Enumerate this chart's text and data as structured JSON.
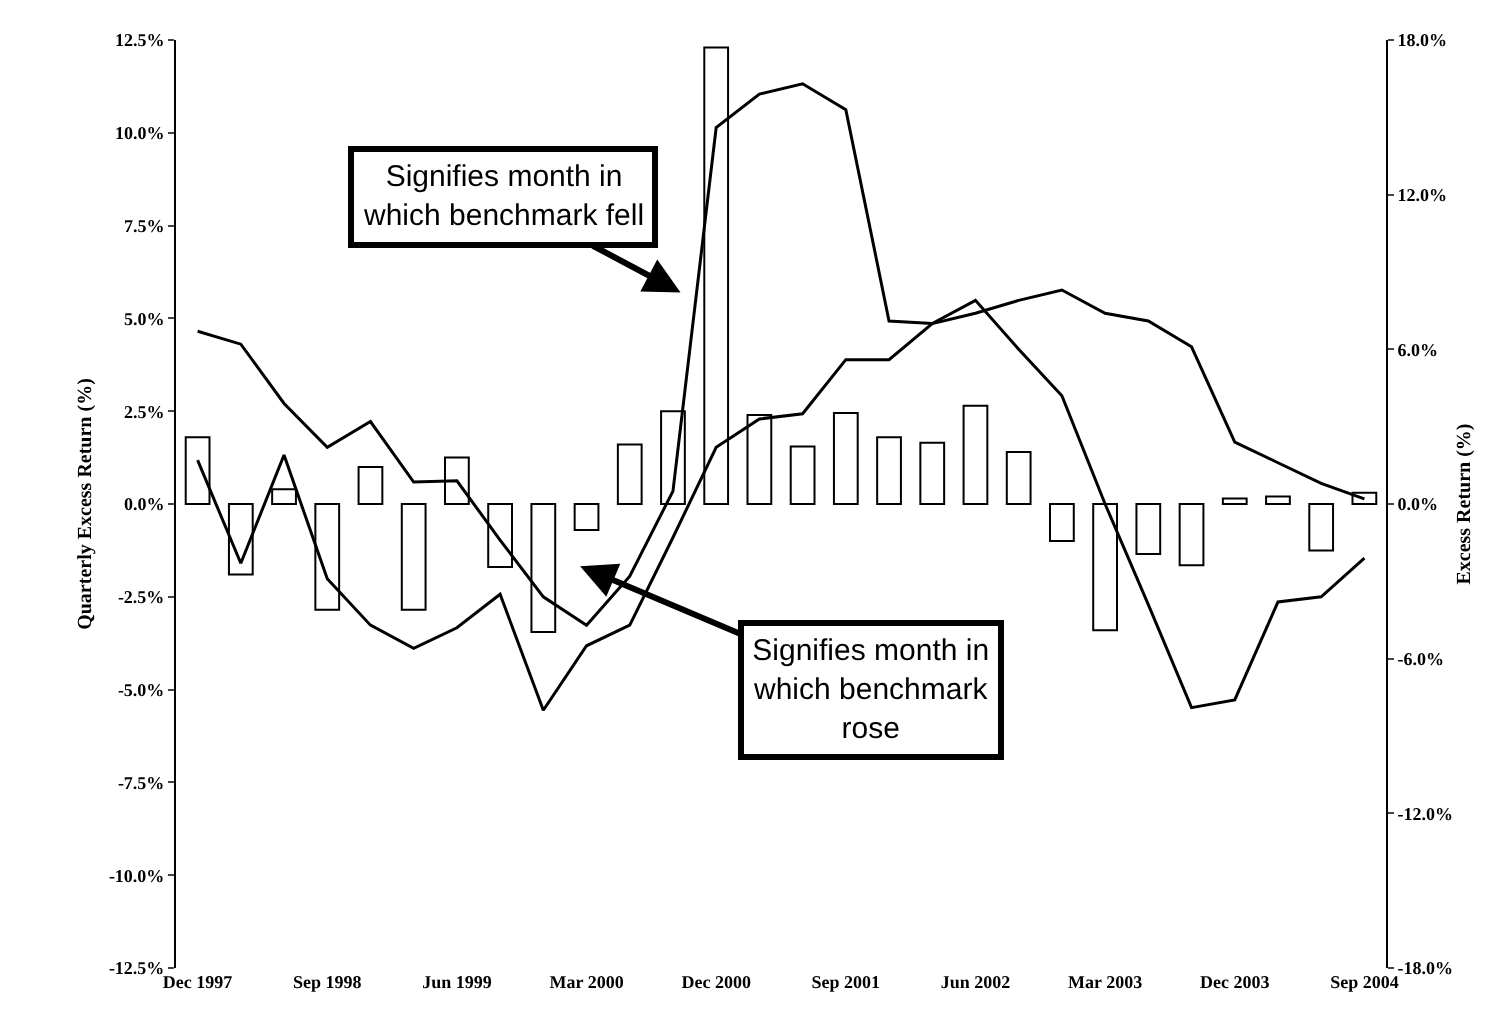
{
  "chart_data": {
    "type": "bar",
    "ylabel": "Quarterly Excess Return (%)",
    "y2label": "Excess Return (%)",
    "categories": [
      "Dec 1997",
      null,
      null,
      "Sep 1998",
      null,
      null,
      "Jun 1999",
      null,
      null,
      "Mar 2000",
      null,
      null,
      "Dec 2000",
      null,
      null,
      "Sep 2001",
      null,
      null,
      "Jun 2002",
      null,
      null,
      "Mar 2003",
      null,
      null,
      "Dec 2003",
      null,
      null,
      "Sep 2004"
    ],
    "series": [
      {
        "color": "#ffffff",
        "values": [
          1.8,
          -1.9,
          0.4,
          -2.85,
          1.0,
          -2.85,
          1.25,
          -1.7,
          -3.45,
          -0.7,
          1.6,
          2.5,
          12.3,
          2.4,
          1.55,
          2.45,
          1.8,
          1.65,
          2.65,
          1.4,
          -1.0,
          -3.4,
          -1.35,
          -1.65,
          0.15,
          0.2,
          -1.25,
          0.3
        ]
      },
      {
        "type": "line",
        "axis": "y2",
        "color": "#000000",
        "values": [
          6.7,
          6.2,
          3.9,
          2.2,
          3.2,
          0.85,
          0.9,
          -1.4,
          -3.6,
          -4.7,
          -2.8,
          0.5,
          14.6,
          15.9,
          16.3,
          15.3,
          7.1,
          7.0,
          7.9,
          6.0,
          4.2,
          0.0,
          -3.9,
          -7.9,
          -7.6,
          -3.8,
          -3.6,
          -2.1
        ]
      },
      {
        "type": "line",
        "axis": "y2",
        "color": "#000000",
        "values": [
          1.7,
          -2.3,
          1.9,
          -2.9,
          -4.7,
          -5.6,
          -4.8,
          -3.5,
          -8.0,
          -5.5,
          -4.7,
          -1.3,
          2.2,
          3.3,
          3.5,
          5.6,
          5.6,
          7.0,
          7.4,
          7.9,
          8.3,
          7.4,
          7.1,
          6.1,
          2.4,
          1.6,
          0.8,
          0.2
        ]
      }
    ],
    "ylim": [
      -12.5,
      12.5
    ],
    "yticks": [
      {
        "value": -12.5,
        "label": "-12.5%"
      },
      {
        "value": -10,
        "label": "-10.0%"
      },
      {
        "value": -7.5,
        "label": "-7.5%"
      },
      {
        "value": -5,
        "label": "-5.0%"
      },
      {
        "value": -2.5,
        "label": "-2.5%"
      },
      {
        "value": 0,
        "label": "0.0%"
      },
      {
        "value": 2.5,
        "label": "2.5%"
      },
      {
        "value": 5,
        "label": "5.0%"
      },
      {
        "value": 7.5,
        "label": "7.5%"
      },
      {
        "value": 10,
        "label": "10.0%"
      },
      {
        "value": 12.5,
        "label": "12.5%"
      }
    ],
    "y2lim": [
      -18,
      18
    ],
    "y2ticks": [
      {
        "value": -18,
        "label": "-18.0%"
      },
      {
        "value": -12,
        "label": "-12.0%"
      },
      {
        "value": -6,
        "label": "-6.0%"
      },
      {
        "value": 0,
        "label": "0.0%"
      },
      {
        "value": 6,
        "label": "6.0%"
      },
      {
        "value": 12,
        "label": "12.0%"
      },
      {
        "value": 18,
        "label": "18.0%"
      }
    ],
    "annotations": [
      "Signifies month in which benchmark fell",
      "Signifies month in which benchmark rose"
    ],
    "grid": false,
    "marker": "none",
    "line_style": "solid"
  }
}
